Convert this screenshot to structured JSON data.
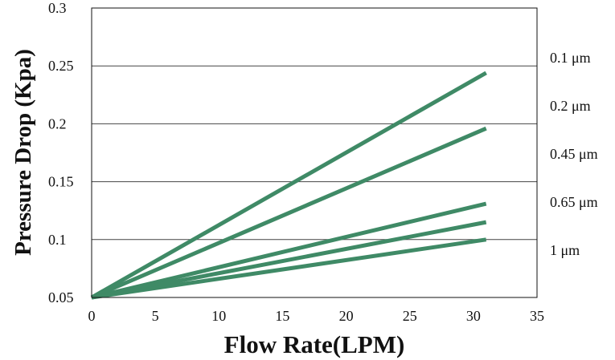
{
  "chart_data": {
    "type": "line",
    "title": "",
    "xlabel": "Flow Rate(LPM)",
    "ylabel": "Pressure Drop (Kpa)",
    "xlim": [
      0,
      35
    ],
    "ylim": [
      0.05,
      0.3
    ],
    "xticks": [
      "0",
      "5",
      "10",
      "15",
      "20",
      "25",
      "30",
      "35"
    ],
    "yticks": [
      "0.3",
      "0.25",
      "0.2",
      "0.15",
      "0.1",
      "0.05"
    ],
    "grid": "horizontal",
    "legend": "right",
    "line_color": "#3f8a66",
    "series": [
      {
        "name": "0.1 μm",
        "x": [
          0,
          31
        ],
        "y": [
          0.05,
          0.244
        ]
      },
      {
        "name": "0.2 μm",
        "x": [
          0,
          31
        ],
        "y": [
          0.05,
          0.196
        ]
      },
      {
        "name": "0.45 μm",
        "x": [
          0,
          31
        ],
        "y": [
          0.05,
          0.131
        ]
      },
      {
        "name": "0.65 μm",
        "x": [
          0,
          31
        ],
        "y": [
          0.05,
          0.115
        ]
      },
      {
        "name": "1 μm",
        "x": [
          0,
          31
        ],
        "y": [
          0.05,
          0.1
        ]
      }
    ]
  }
}
